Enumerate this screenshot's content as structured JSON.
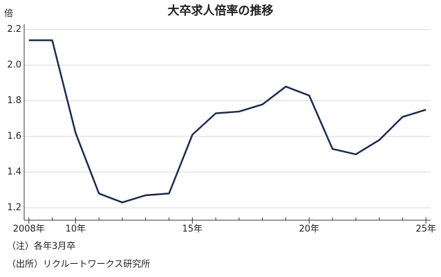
{
  "chart_data": {
    "type": "line",
    "title": "大卒求人倍率の推移",
    "y_label": "倍",
    "x": [
      2008,
      2009,
      2010,
      2011,
      2012,
      2013,
      2014,
      2015,
      2016,
      2017,
      2018,
      2019,
      2020,
      2021,
      2022,
      2023,
      2024,
      2025
    ],
    "series": [
      {
        "name": "大卒求人倍率",
        "color": "#1b2a4e",
        "values": [
          2.14,
          2.14,
          1.62,
          1.28,
          1.23,
          1.27,
          1.28,
          1.61,
          1.73,
          1.74,
          1.78,
          1.88,
          1.83,
          1.53,
          1.5,
          1.58,
          1.71,
          1.75
        ]
      }
    ],
    "xlim": [
      2007.8,
      2025.2
    ],
    "xticks": [
      {
        "value": 2008,
        "label": "2008年"
      },
      {
        "value": 2010,
        "label": "10年"
      },
      {
        "value": 2015,
        "label": "15年"
      },
      {
        "value": 2020,
        "label": "20年"
      },
      {
        "value": 2025,
        "label": "25年"
      }
    ],
    "ylim": [
      1.13,
      2.23
    ],
    "yticks": [
      1.2,
      1.4,
      1.6,
      1.8,
      {
        "value": 2,
        "label": "2.0"
      },
      2.2
    ],
    "grid": true,
    "notes": [
      "（注）各年3月卒",
      "（出所）リクルートワークス研究所"
    ]
  }
}
